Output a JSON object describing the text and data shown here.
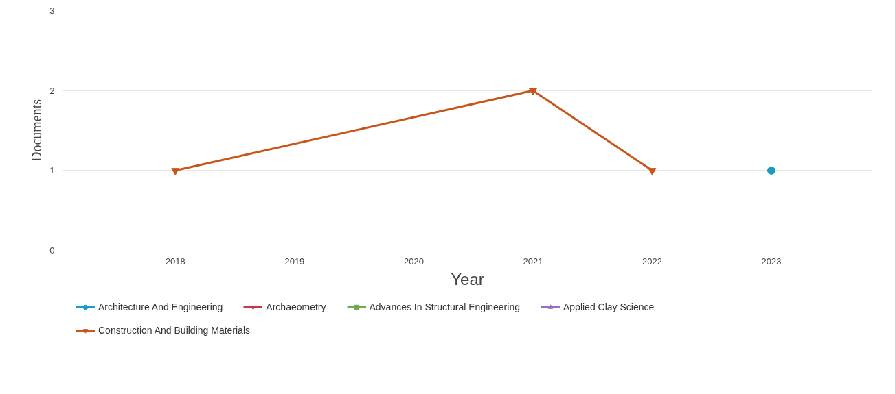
{
  "chart_data": {
    "type": "line",
    "xlabel": "Year",
    "ylabel": "Documents",
    "xlim": [
      2017.05,
      2023.85
    ],
    "xticks": [
      2018,
      2019,
      2020,
      2021,
      2022,
      2023
    ],
    "ylim": [
      0,
      3
    ],
    "yticks": [
      0,
      1,
      2,
      3
    ],
    "grid": "y",
    "legend": "bottom",
    "series": [
      {
        "name": "Architecture And Engineering",
        "color": "#1a9bc0",
        "marker": "circle",
        "x": [
          2023
        ],
        "values": [
          1
        ]
      },
      {
        "name": "Archaeometry",
        "color": "#c0394b",
        "marker": "diamond"
      },
      {
        "name": "Advances In Structural Engineering",
        "color": "#6fa84f",
        "marker": "square"
      },
      {
        "name": "Applied Clay Science",
        "color": "#9b6bbf",
        "marker": "triangle"
      },
      {
        "name": "Construction And Building Materials",
        "color": "#c8561b",
        "marker": "triangle_down",
        "x": [
          2018,
          2021,
          2022
        ],
        "values": [
          1,
          2,
          1
        ]
      }
    ]
  }
}
